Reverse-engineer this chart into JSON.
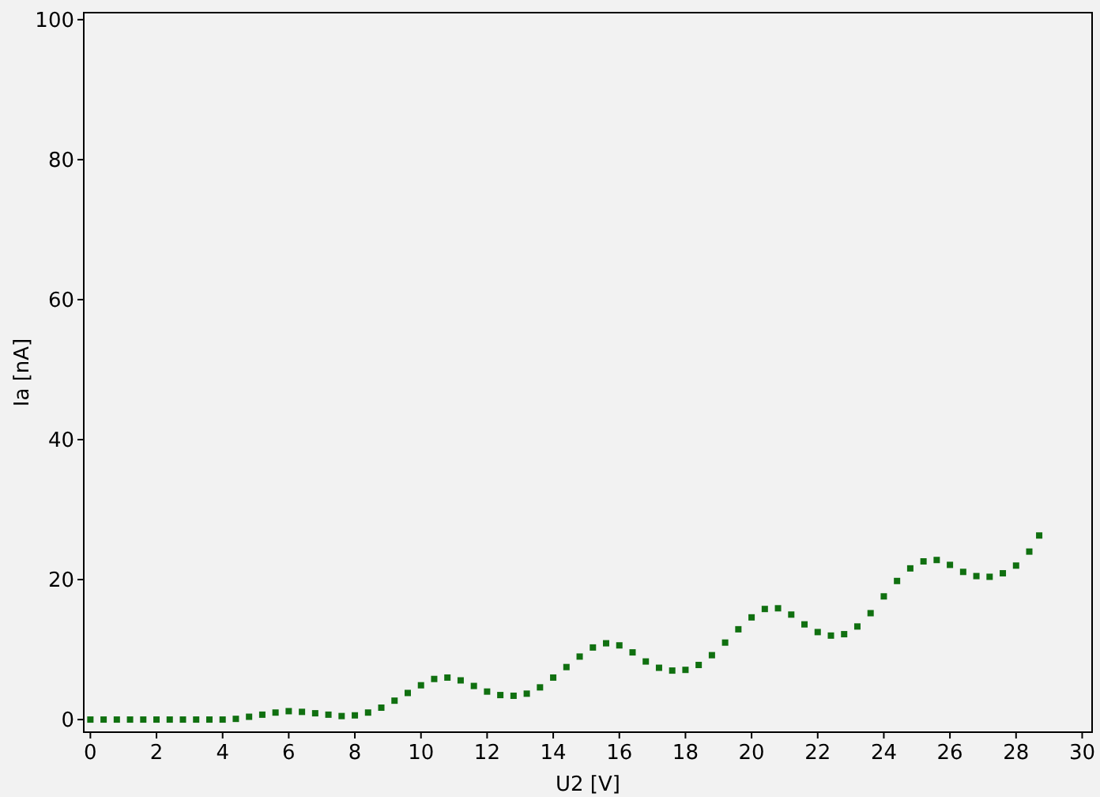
{
  "chart_data": {
    "type": "scatter",
    "xlabel": "U2 [V]",
    "ylabel": "Ia [nA]",
    "xlim": [
      -0.2,
      30.3
    ],
    "ylim": [
      -1.8,
      101
    ],
    "xticks": [
      0,
      2,
      4,
      6,
      8,
      10,
      12,
      14,
      16,
      18,
      20,
      22,
      24,
      26,
      28,
      30
    ],
    "yticks": [
      0,
      20,
      40,
      60,
      80,
      100
    ],
    "grid": false,
    "marker": "square",
    "series": [
      {
        "color": "#107010",
        "x": [
          0,
          0.4,
          0.8,
          1.2,
          1.6,
          2.0,
          2.4,
          2.8,
          3.2,
          3.6,
          4.0,
          4.4,
          4.8,
          5.2,
          5.6,
          6.0,
          6.4,
          6.8,
          7.2,
          7.6,
          8.0,
          8.4,
          8.8,
          9.2,
          9.6,
          10.0,
          10.4,
          10.8,
          11.2,
          11.6,
          12.0,
          12.4,
          12.8,
          13.2,
          13.6,
          14.0,
          14.4,
          14.8,
          15.2,
          15.6,
          16.0,
          16.4,
          16.8,
          17.2,
          17.6,
          18.0,
          18.4,
          18.8,
          19.2,
          19.6,
          20.0,
          20.4,
          20.8,
          21.2,
          21.6,
          22.0,
          22.4,
          22.8,
          23.2,
          23.6,
          24.0,
          24.4,
          24.8,
          25.2,
          25.6,
          26.0,
          26.4,
          26.8,
          27.2,
          27.6,
          28.0,
          28.4,
          28.7
        ],
        "values": [
          0,
          0,
          0,
          0,
          0,
          0,
          0,
          0,
          0,
          0,
          0,
          0.1,
          0.4,
          0.7,
          1.0,
          1.2,
          1.1,
          0.9,
          0.7,
          0.5,
          0.6,
          1.0,
          1.7,
          2.7,
          3.8,
          4.9,
          5.8,
          6.0,
          5.6,
          4.8,
          4.0,
          3.5,
          3.4,
          3.7,
          4.6,
          6.0,
          7.5,
          9.0,
          10.3,
          10.9,
          10.6,
          9.6,
          8.3,
          7.4,
          7.0,
          7.1,
          7.8,
          9.2,
          11.0,
          12.9,
          14.6,
          15.8,
          15.9,
          15.0,
          13.6,
          12.5,
          12.0,
          12.2,
          13.3,
          15.2,
          17.6,
          19.8,
          21.6,
          22.6,
          22.8,
          22.1,
          21.1,
          20.5,
          20.4,
          20.9,
          22.0,
          24.0,
          26.3
        ]
      }
    ]
  }
}
